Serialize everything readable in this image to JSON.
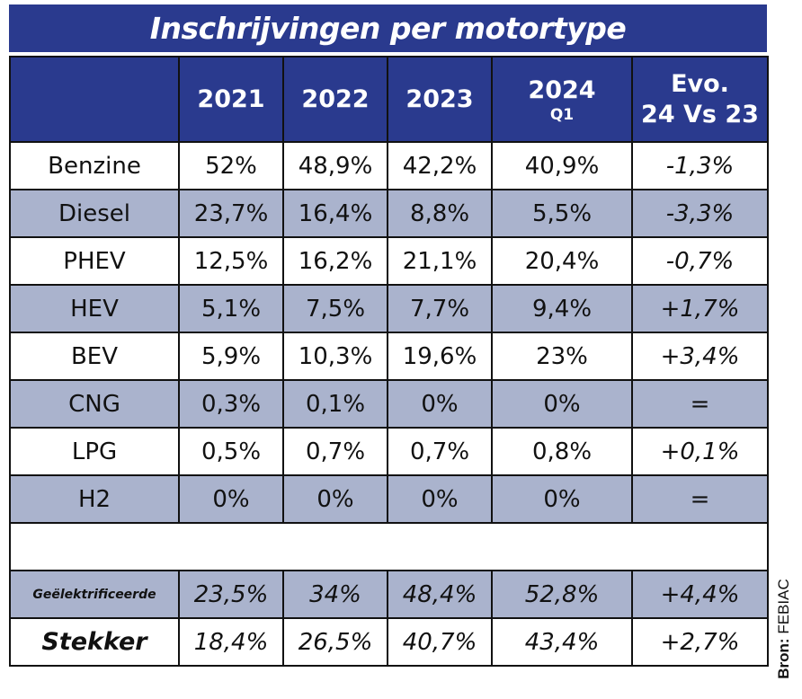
{
  "title": "Inschrijvingen per motortype",
  "header": {
    "empty": "",
    "col_2021": "2021",
    "col_2022": "2022",
    "col_2023": "2023",
    "col_2024": "2024",
    "col_2024_sub": "Q1",
    "col_evo_line1": "Evo.",
    "col_evo_line2": "24 Vs 23"
  },
  "rows": [
    {
      "label": "Benzine",
      "v2021": "52%",
      "v2022": "48,9%",
      "v2023": "42,2%",
      "v2024": "40,9%",
      "evo": "-1,3%"
    },
    {
      "label": "Diesel",
      "v2021": "23,7%",
      "v2022": "16,4%",
      "v2023": "8,8%",
      "v2024": "5,5%",
      "evo": "-3,3%"
    },
    {
      "label": "PHEV",
      "v2021": "12,5%",
      "v2022": "16,2%",
      "v2023": "21,1%",
      "v2024": "20,4%",
      "evo": "-0,7%"
    },
    {
      "label": "HEV",
      "v2021": "5,1%",
      "v2022": "7,5%",
      "v2023": "7,7%",
      "v2024": "9,4%",
      "evo": "+1,7%"
    },
    {
      "label": "BEV",
      "v2021": "5,9%",
      "v2022": "10,3%",
      "v2023": "19,6%",
      "v2024": "23%",
      "evo": "+3,4%"
    },
    {
      "label": "CNG",
      "v2021": "0,3%",
      "v2022": "0,1%",
      "v2023": "0%",
      "v2024": "0%",
      "evo": "="
    },
    {
      "label": "LPG",
      "v2021": "0,5%",
      "v2022": "0,7%",
      "v2023": "0,7%",
      "v2024": "0,8%",
      "evo": "+0,1%"
    },
    {
      "label": "H2",
      "v2021": "0%",
      "v2022": "0%",
      "v2023": "0%",
      "v2024": "0%",
      "evo": "="
    }
  ],
  "summary": [
    {
      "label": "Geëlektrificeerde",
      "v2021": "23,5%",
      "v2022": "34%",
      "v2023": "48,4%",
      "v2024": "52,8%",
      "evo": "+4,4%"
    },
    {
      "label": "Stekker",
      "v2021": "18,4%",
      "v2022": "26,5%",
      "v2023": "40,7%",
      "v2024": "43,4%",
      "evo": "+2,7%"
    }
  ],
  "source": {
    "label": "Bron:",
    "value": "FEBIAC"
  },
  "colors": {
    "header_bg": "#2a3a8e",
    "alt_row_bg": "#aab3cd",
    "border": "#111111"
  }
}
